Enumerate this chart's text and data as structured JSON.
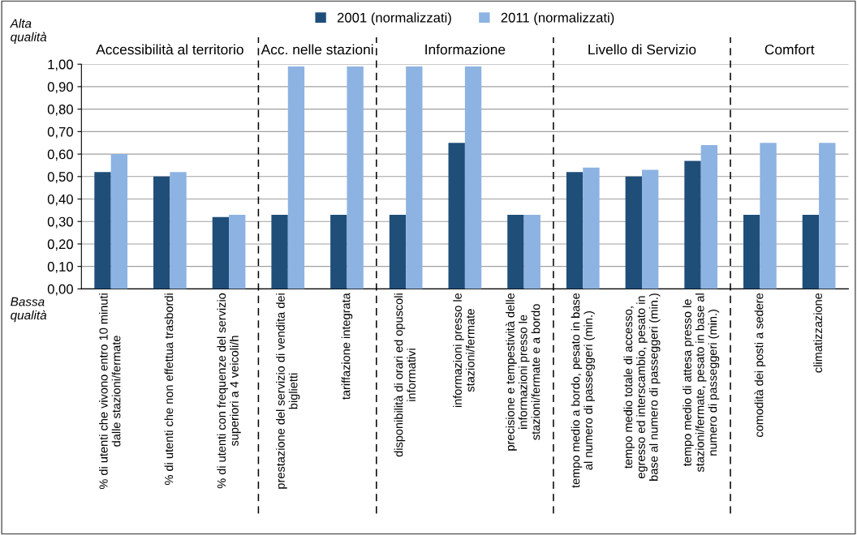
{
  "chart_data": {
    "type": "bar",
    "categories": [
      "% di utenti che vivono entro 10 minuti\ndalle stazioni/fermate",
      "% di utenti che non effettua trasbordi",
      "% di utenti con frequenze del servizio\nsuperiori a 4 veicoli/h",
      "prestazione del servizio di vendita dei\nbiglietti",
      "tariffazione integrata",
      "disponibilità di orari ed opuscoli\ninformativi",
      "informazioni presso le\nstazioni/fermate",
      "precisione e tempestività delle\ninformazioni presso le\nstazioni/fermate e a bordo",
      "tempo medio a bordo, pesato in base\nal numero di passeggeri (min.)",
      "tempo medio totale di accesso,\negresso ed interscambio, pesato in\nbase al numero di passeggeri (min.)",
      "tempo medio di attesa presso le\nstazioni/fermate, pesato in base al\nnumero di passeggeri (min.)",
      "comodità dei posti a sedere",
      "climatizzazione"
    ],
    "series": [
      {
        "name": "2001 (normalizzati)",
        "color": "#1f4e79",
        "values": [
          0.52,
          0.5,
          0.32,
          0.33,
          0.33,
          0.33,
          0.65,
          0.33,
          0.52,
          0.5,
          0.57,
          0.33,
          0.33
        ]
      },
      {
        "name": "2011 (normalizzati)",
        "color": "#8db3e2",
        "values": [
          0.6,
          0.52,
          0.33,
          0.99,
          0.99,
          0.99,
          0.99,
          0.33,
          0.54,
          0.53,
          0.64,
          0.65,
          0.65
        ]
      }
    ],
    "ylim": [
      0,
      1
    ],
    "yticks": [
      {
        "value": 0,
        "label": "0,00"
      },
      {
        "value": 0.1,
        "label": "0,10"
      },
      {
        "value": 0.2,
        "label": "0,20"
      },
      {
        "value": 0.3,
        "label": "0,30"
      },
      {
        "value": 0.4,
        "label": "0,40"
      },
      {
        "value": 0.5,
        "label": "0,50"
      },
      {
        "value": 0.6,
        "label": "0,60"
      },
      {
        "value": 0.7,
        "label": "0,70"
      },
      {
        "value": 0.8,
        "label": "0,80"
      },
      {
        "value": 0.9,
        "label": "0,90"
      },
      {
        "value": 1,
        "label": "1,00"
      }
    ],
    "annotations": [
      "Accessibilità al territorio",
      "Acc. nelle stazioni",
      "Informazione",
      "Livello di Servizio",
      "Comfort",
      "Alta\nqualità",
      "Bassa\nqualità"
    ],
    "grid": "y",
    "legend": "top"
  }
}
